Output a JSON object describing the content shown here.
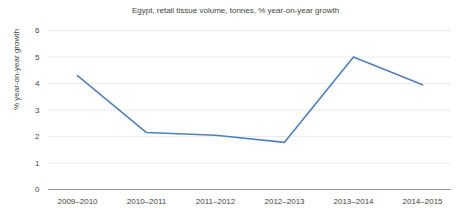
{
  "chart_data": {
    "type": "line",
    "title": "Egypt, retail tissue volume, tonnes, % year-on-year growth",
    "y_label": "% year-on-year growth",
    "categories": [
      "2009–2010",
      "2010–2011",
      "2011–2012",
      "2012–2013",
      "2013–2014",
      "2014–2015"
    ],
    "values": [
      4.3,
      2.15,
      2.05,
      1.78,
      5.0,
      3.95
    ],
    "color": "#4f81bd",
    "ylim": [
      0,
      6
    ],
    "yticks": [
      0,
      1,
      2,
      3,
      4,
      5,
      6
    ],
    "grid": true
  }
}
